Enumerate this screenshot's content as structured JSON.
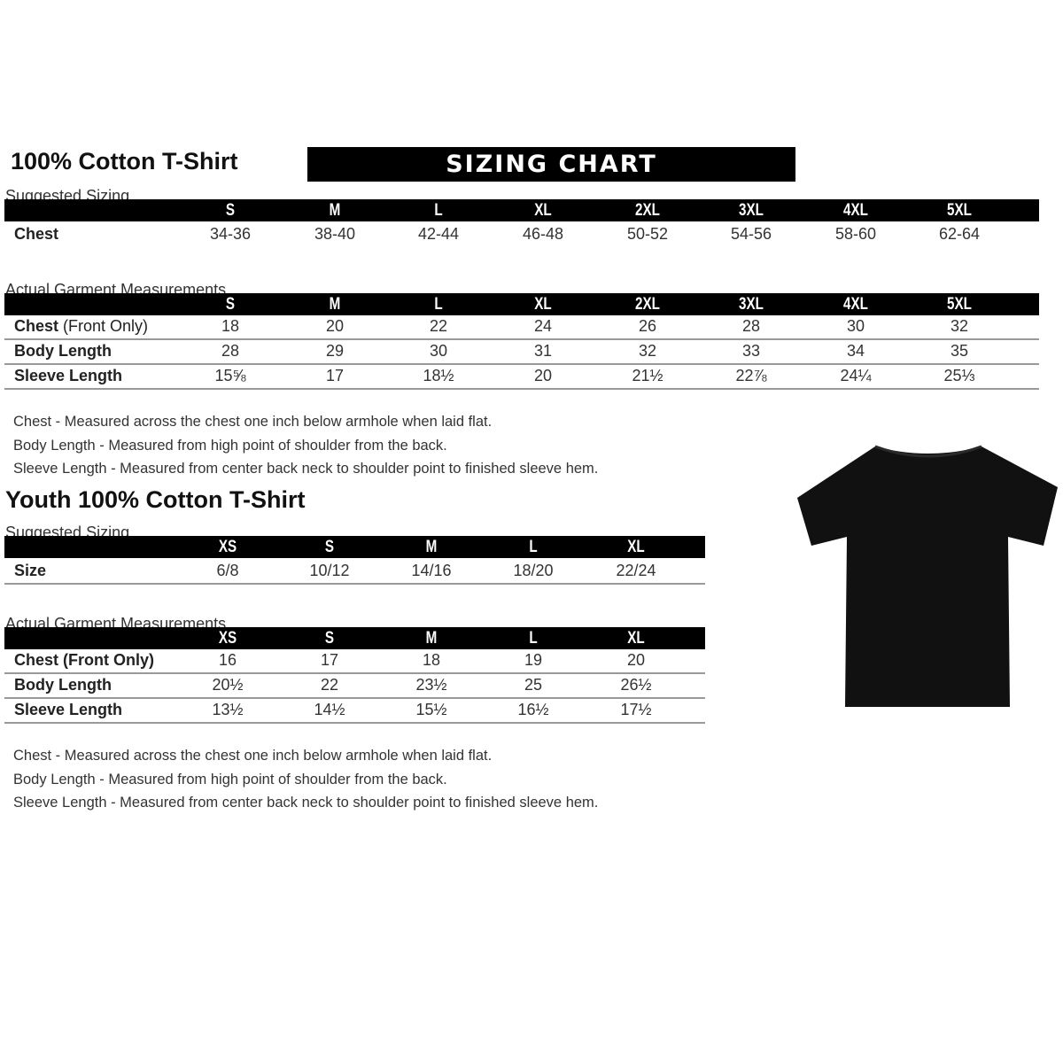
{
  "adult": {
    "title": "100% Cotton T-Shirt",
    "banner": "SIZING CHART",
    "suggested_label": "Suggested Sizing",
    "sizes": [
      "S",
      "M",
      "L",
      "XL",
      "2XL",
      "3XL",
      "4XL",
      "5XL"
    ],
    "suggested_rows": [
      {
        "label": "Chest",
        "values": [
          "34-36",
          "38-40",
          "42-44",
          "46-48",
          "50-52",
          "54-56",
          "58-60",
          "62-64"
        ]
      }
    ],
    "actual_label": "Actual Garment Measurements",
    "actual_rows": [
      {
        "label": "Chest",
        "label_suffix": " (Front Only)",
        "values": [
          "18",
          "20",
          "22",
          "24",
          "26",
          "28",
          "30",
          "32"
        ]
      },
      {
        "label": "Body Length",
        "values": [
          "28",
          "29",
          "30",
          "31",
          "32",
          "33",
          "34",
          "35"
        ]
      },
      {
        "label": "Sleeve Length",
        "values": [
          "15⅝",
          "17",
          "18½",
          "20",
          "21½",
          "22⅞",
          "24¼",
          "25⅓"
        ]
      }
    ],
    "notes": [
      "Chest - Measured across the chest one inch below armhole when laid flat.",
      "Body Length - Measured from high point of shoulder from the back.",
      "Sleeve Length - Measured from center back neck to shoulder point to finished sleeve hem."
    ]
  },
  "youth": {
    "title": "Youth 100% Cotton T-Shirt",
    "suggested_label": "Suggested Sizing",
    "sizes": [
      "XS",
      "S",
      "M",
      "L",
      "XL"
    ],
    "suggested_rows": [
      {
        "label": "Size",
        "values": [
          "6/8",
          "10/12",
          "14/16",
          "18/20",
          "22/24"
        ]
      }
    ],
    "actual_label": "Actual Garment Measurements",
    "actual_rows": [
      {
        "label": "Chest (Front Only)",
        "values": [
          "16",
          "17",
          "18",
          "19",
          "20"
        ]
      },
      {
        "label": "Body Length",
        "values": [
          "20½",
          "22",
          "23½",
          "25",
          "26½"
        ]
      },
      {
        "label": "Sleeve Length",
        "values": [
          "13½",
          "14½",
          "15½",
          "16½",
          "17½"
        ]
      }
    ],
    "notes": [
      "Chest - Measured across the chest one inch below armhole when laid flat.",
      "Body Length - Measured from high point of shoulder from the back.",
      "Sleeve Length - Measured from center back neck to shoulder point to finished sleeve hem."
    ]
  },
  "image": {
    "icon": "black-tshirt-icon",
    "color": "#111111"
  }
}
